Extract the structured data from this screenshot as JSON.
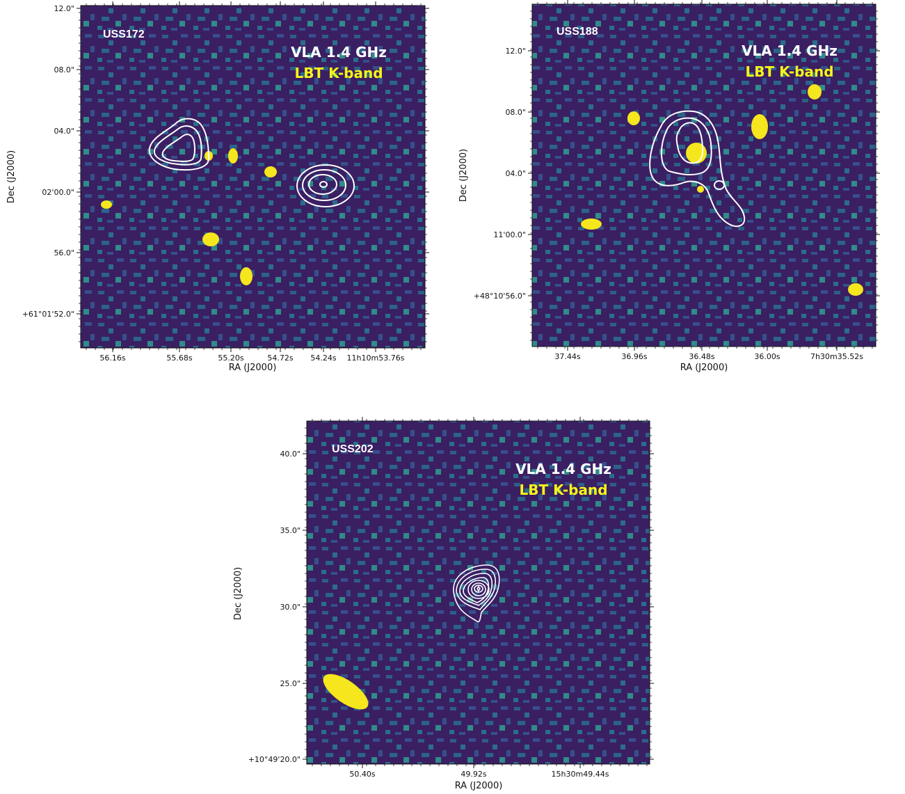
{
  "chart_data": [
    {
      "type": "heatmap",
      "name_label": "USS172",
      "legend": [
        "VLA 1.4 GHz",
        "LBT K-band"
      ],
      "xlabel": "RA (J2000)",
      "ylabel": "Dec (J2000)",
      "xticks": [
        "56.16s",
        "55.68s",
        "55.20s",
        "54.72s",
        "54.24s",
        "11h10m53.76s"
      ],
      "yticks": [
        "12.0\"",
        "08.0\"",
        "04.0\"",
        "02'00.0\"",
        "56.0\"",
        "+61°01'52.0\""
      ],
      "colors": {
        "background": "#3b1f63",
        "mid": "#2c6f8e",
        "bright": "#23a883",
        "source": "#f5e61e",
        "contour": "#ffffff"
      }
    },
    {
      "type": "heatmap",
      "name_label": "USS188",
      "legend": [
        "VLA 1.4 GHz",
        "LBT K-band"
      ],
      "xlabel": "RA (J2000)",
      "ylabel": "Dec (J2000)",
      "xticks": [
        "37.44s",
        "36.96s",
        "36.48s",
        "36.00s",
        "7h30m35.52s"
      ],
      "yticks": [
        "12.0\"",
        "08.0\"",
        "04.0\"",
        "11'00.0\"",
        "+48°10'56.0\""
      ],
      "colors": {
        "background": "#3b1f63",
        "mid": "#2c6f8e",
        "bright": "#23a883",
        "source": "#f5e61e",
        "contour": "#ffffff"
      }
    },
    {
      "type": "heatmap",
      "name_label": "USS202",
      "legend": [
        "VLA 1.4 GHz",
        "LBT K-band"
      ],
      "xlabel": "RA (J2000)",
      "ylabel": "Dec (J2000)",
      "xticks": [
        "50.40s",
        "49.92s",
        "15h30m49.44s"
      ],
      "yticks": [
        "40.0\"",
        "35.0\"",
        "30.0\"",
        "25.0\"",
        "+10°49'20.0\""
      ],
      "colors": {
        "background": "#3b1f63",
        "mid": "#2c6f8e",
        "bright": "#23a883",
        "source": "#f5e61e",
        "contour": "#ffffff"
      }
    }
  ]
}
